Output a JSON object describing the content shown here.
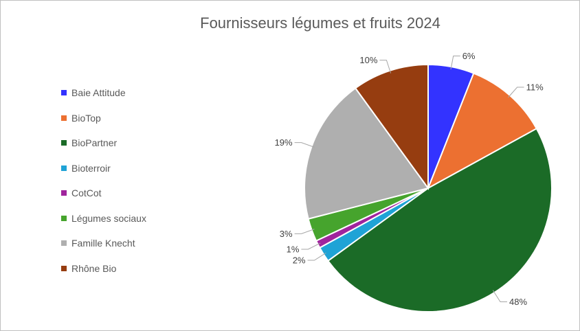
{
  "chart_data": {
    "type": "pie",
    "title": "Fournisseurs légumes et fruits 2024",
    "legend_position": "left",
    "slices": [
      {
        "label": "Baie Attitude",
        "value": 6,
        "display": "6%",
        "color": "#3333ff"
      },
      {
        "label": "BioTop",
        "value": 11,
        "display": "11%",
        "color": "#ec7031"
      },
      {
        "label": "BioPartner",
        "value": 48,
        "display": "48%",
        "color": "#1b6b27"
      },
      {
        "label": "Bioterroir",
        "value": 2,
        "display": "2%",
        "color": "#1fa3d6"
      },
      {
        "label": "CotCot",
        "value": 1,
        "display": "1%",
        "color": "#a0249d"
      },
      {
        "label": "Légumes sociaux",
        "value": 3,
        "display": "3%",
        "color": "#46a42d"
      },
      {
        "label": "Famille Knecht",
        "value": 19,
        "display": "19%",
        "color": "#afafaf"
      },
      {
        "label": "Rhône Bio",
        "value": 10,
        "display": "10%",
        "color": "#963d10"
      }
    ]
  }
}
